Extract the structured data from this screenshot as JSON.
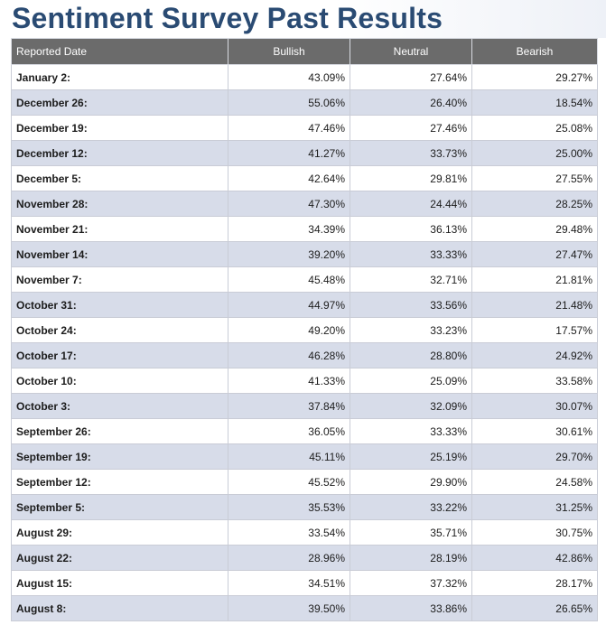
{
  "page": {
    "title": "Sentiment Survey Past Results"
  },
  "table": {
    "headers": {
      "date": "Reported Date",
      "bullish": "Bullish",
      "neutral": "Neutral",
      "bearish": "Bearish"
    },
    "rows": [
      {
        "date": "January 2:",
        "bullish": "43.09%",
        "neutral": "27.64%",
        "bearish": "29.27%"
      },
      {
        "date": "December 26:",
        "bullish": "55.06%",
        "neutral": "26.40%",
        "bearish": "18.54%"
      },
      {
        "date": "December 19:",
        "bullish": "47.46%",
        "neutral": "27.46%",
        "bearish": "25.08%"
      },
      {
        "date": "December 12:",
        "bullish": "41.27%",
        "neutral": "33.73%",
        "bearish": "25.00%"
      },
      {
        "date": "December 5:",
        "bullish": "42.64%",
        "neutral": "29.81%",
        "bearish": "27.55%"
      },
      {
        "date": "November 28:",
        "bullish": "47.30%",
        "neutral": "24.44%",
        "bearish": "28.25%"
      },
      {
        "date": "November 21:",
        "bullish": "34.39%",
        "neutral": "36.13%",
        "bearish": "29.48%"
      },
      {
        "date": "November 14:",
        "bullish": "39.20%",
        "neutral": "33.33%",
        "bearish": "27.47%"
      },
      {
        "date": "November 7:",
        "bullish": "45.48%",
        "neutral": "32.71%",
        "bearish": "21.81%"
      },
      {
        "date": "October 31:",
        "bullish": "44.97%",
        "neutral": "33.56%",
        "bearish": "21.48%"
      },
      {
        "date": "October 24:",
        "bullish": "49.20%",
        "neutral": "33.23%",
        "bearish": "17.57%"
      },
      {
        "date": "October 17:",
        "bullish": "46.28%",
        "neutral": "28.80%",
        "bearish": "24.92%"
      },
      {
        "date": "October 10:",
        "bullish": "41.33%",
        "neutral": "25.09%",
        "bearish": "33.58%"
      },
      {
        "date": "October 3:",
        "bullish": "37.84%",
        "neutral": "32.09%",
        "bearish": "30.07%"
      },
      {
        "date": "September 26:",
        "bullish": "36.05%",
        "neutral": "33.33%",
        "bearish": "30.61%"
      },
      {
        "date": "September 19:",
        "bullish": "45.11%",
        "neutral": "25.19%",
        "bearish": "29.70%"
      },
      {
        "date": "September 12:",
        "bullish": "45.52%",
        "neutral": "29.90%",
        "bearish": "24.58%"
      },
      {
        "date": "September 5:",
        "bullish": "35.53%",
        "neutral": "33.22%",
        "bearish": "31.25%"
      },
      {
        "date": "August 29:",
        "bullish": "33.54%",
        "neutral": "35.71%",
        "bearish": "30.75%"
      },
      {
        "date": "August 22:",
        "bullish": "28.96%",
        "neutral": "28.19%",
        "bearish": "42.86%"
      },
      {
        "date": "August 15:",
        "bullish": "34.51%",
        "neutral": "37.32%",
        "bearish": "28.17%"
      },
      {
        "date": "August 8:",
        "bullish": "39.50%",
        "neutral": "33.86%",
        "bearish": "26.65%"
      }
    ]
  },
  "colors": {
    "title": "#2a4b73",
    "header_bg": "#6b6b6b",
    "row_alt_bg": "#d7dce9"
  }
}
